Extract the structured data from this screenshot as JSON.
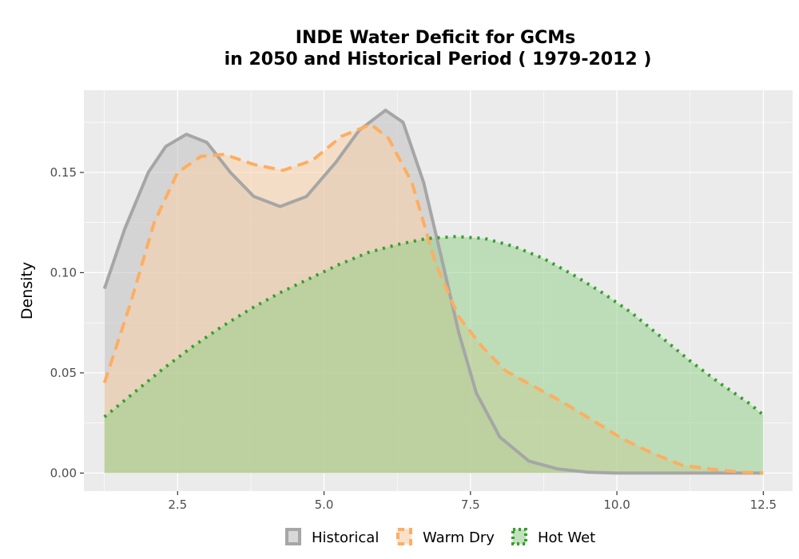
{
  "chart_data": {
    "type": "area",
    "title_lines": [
      "INDE  Water Deficit for GCMs",
      "in 2050 and Historical Period ( 1979-2012 )"
    ],
    "xlabel": "",
    "ylabel": "Density",
    "xlim": [
      0.9,
      13.0
    ],
    "ylim": [
      -0.009,
      0.191
    ],
    "x_ticks": [
      2.5,
      5.0,
      7.5,
      10.0,
      12.5
    ],
    "x_tick_labels": [
      "2.5",
      "5.0",
      "7.5",
      "10.0",
      "12.5"
    ],
    "y_ticks": [
      0.0,
      0.05,
      0.1,
      0.15
    ],
    "y_tick_labels": [
      "0.00",
      "0.05",
      "0.10",
      "0.15"
    ],
    "grid": true,
    "legend_position": "bottom",
    "series": [
      {
        "name": "Historical",
        "line_color": "#a6a6a6",
        "fill_color": "#bdbdbd",
        "dash": "solid",
        "x": [
          1.25,
          1.6,
          2.0,
          2.3,
          2.65,
          3.0,
          3.4,
          3.8,
          4.25,
          4.7,
          5.2,
          5.6,
          6.05,
          6.35,
          6.7,
          7.0,
          7.3,
          7.6,
          8.0,
          8.5,
          9.0,
          9.5,
          10.0,
          11.0,
          12.5
        ],
        "y": [
          0.092,
          0.122,
          0.15,
          0.163,
          0.169,
          0.165,
          0.15,
          0.138,
          0.133,
          0.138,
          0.155,
          0.171,
          0.181,
          0.175,
          0.145,
          0.108,
          0.07,
          0.04,
          0.018,
          0.006,
          0.002,
          0.0005,
          0.0,
          0.0,
          0.0
        ]
      },
      {
        "name": "Warm Dry",
        "line_color": "#fdae61",
        "fill_color": "#fdd0a2",
        "dash": "dashed",
        "x": [
          1.25,
          1.7,
          2.1,
          2.5,
          2.9,
          3.3,
          3.8,
          4.3,
          4.8,
          5.3,
          5.8,
          6.1,
          6.5,
          6.9,
          7.3,
          7.7,
          8.1,
          8.6,
          9.1,
          9.6,
          10.1,
          10.6,
          11.1,
          11.6,
          12.1,
          12.5
        ],
        "y": [
          0.045,
          0.085,
          0.125,
          0.15,
          0.158,
          0.159,
          0.154,
          0.151,
          0.156,
          0.168,
          0.174,
          0.167,
          0.145,
          0.105,
          0.078,
          0.063,
          0.051,
          0.043,
          0.035,
          0.026,
          0.017,
          0.01,
          0.004,
          0.002,
          0.0005,
          0.0
        ]
      },
      {
        "name": "Hot Wet",
        "line_color": "#33a02c",
        "fill_color": "#8fce86",
        "dash": "dotted",
        "x": [
          1.25,
          1.75,
          2.25,
          2.75,
          3.25,
          3.75,
          4.25,
          4.75,
          5.25,
          5.75,
          6.25,
          6.75,
          7.25,
          7.75,
          8.25,
          8.75,
          9.25,
          9.75,
          10.25,
          10.75,
          11.25,
          11.75,
          12.25,
          12.5
        ],
        "y": [
          0.028,
          0.04,
          0.052,
          0.063,
          0.073,
          0.082,
          0.09,
          0.097,
          0.104,
          0.11,
          0.114,
          0.117,
          0.118,
          0.117,
          0.113,
          0.107,
          0.099,
          0.09,
          0.08,
          0.068,
          0.056,
          0.045,
          0.035,
          0.029
        ]
      }
    ]
  }
}
